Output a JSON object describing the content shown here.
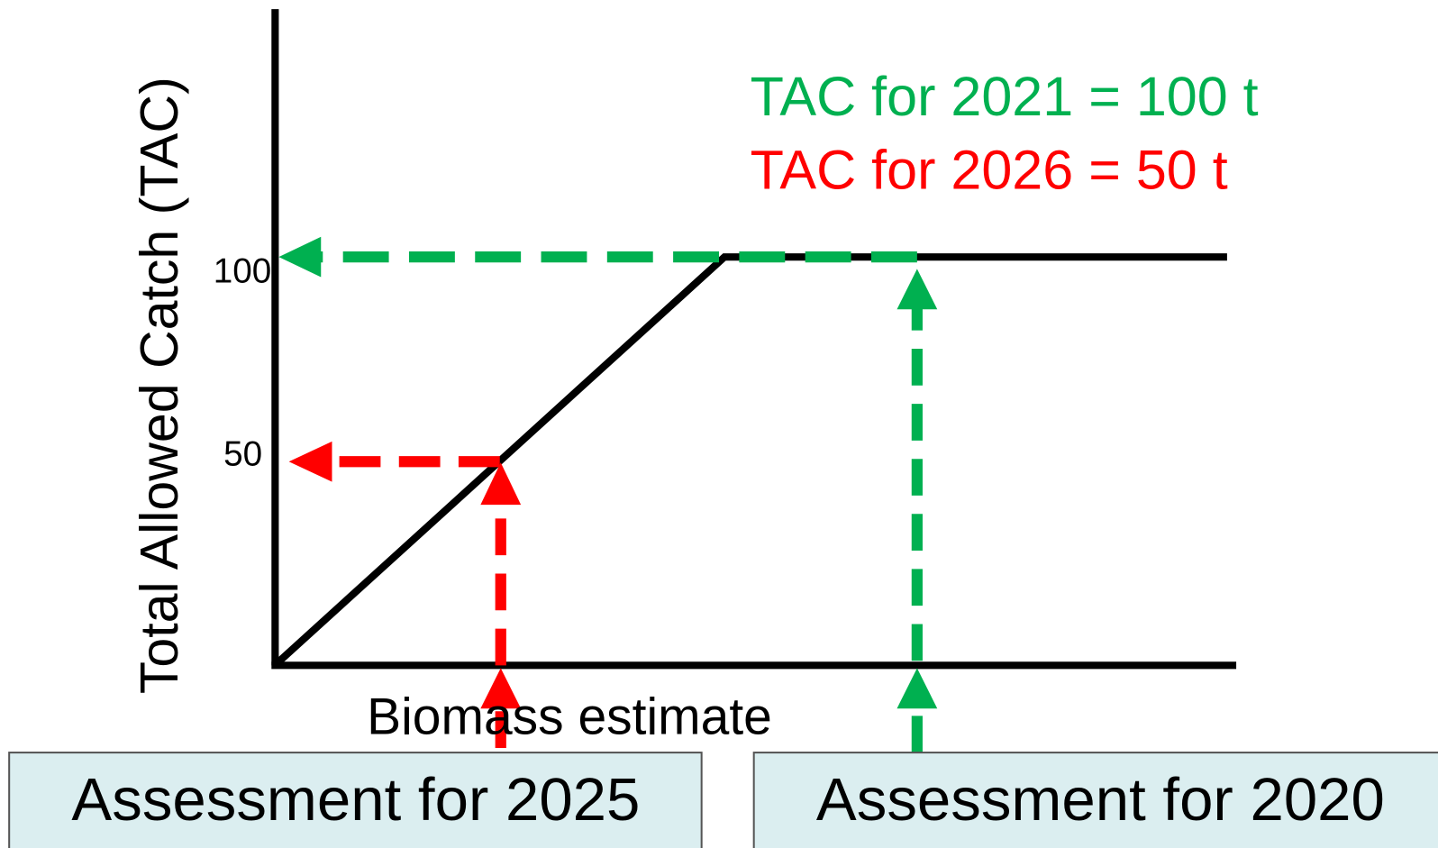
{
  "axes": {
    "y_label": "Total Allowed Catch (TAC)",
    "x_label": "Biomass estimate",
    "ticks": [
      "100",
      "50"
    ]
  },
  "annotations": [
    "TAC for 2021 = 100 t",
    "TAC for 2026 = 50 t"
  ],
  "boxes": [
    "Assessment for 2025",
    "Assessment for 2020"
  ]
}
